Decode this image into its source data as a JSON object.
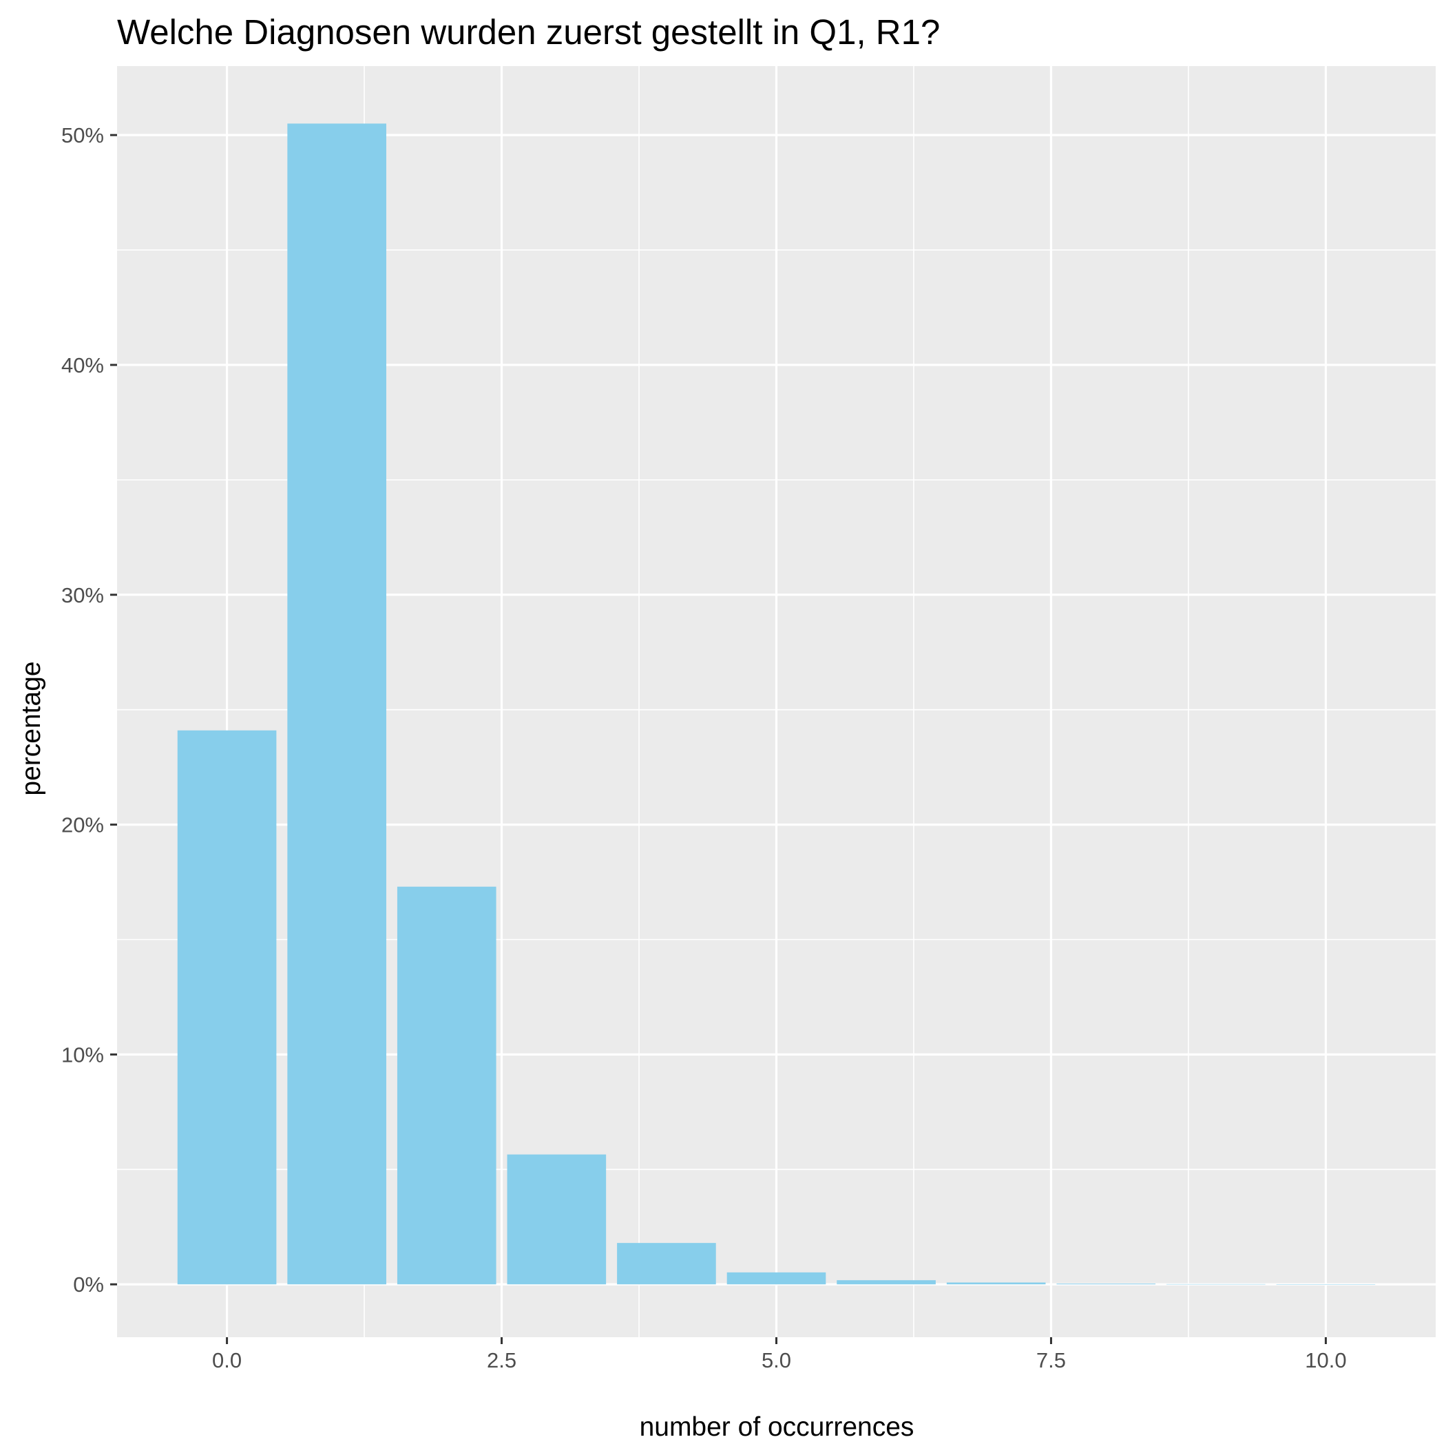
{
  "chart_data": {
    "type": "bar",
    "title": "Welche Diagnosen wurden zuerst gestellt in Q1, R1?",
    "xlabel": "number of occurrences",
    "ylabel": "percentage",
    "x": [
      0,
      1,
      2,
      3,
      4,
      5,
      6,
      7,
      8,
      9,
      10
    ],
    "values": [
      24.1,
      50.5,
      17.3,
      5.65,
      1.8,
      0.52,
      0.18,
      0.08,
      0.03,
      0.01,
      0.005
    ],
    "xlim": [
      -1,
      11
    ],
    "ylim": [
      -2.3,
      53
    ],
    "x_ticks": [
      0,
      2.5,
      5,
      7.5,
      10
    ],
    "x_tick_labels": [
      "0.0",
      "2.5",
      "5.0",
      "7.5",
      "10.0"
    ],
    "y_ticks": [
      0,
      10,
      20,
      30,
      40,
      50
    ],
    "y_tick_labels": [
      "0%",
      "10%",
      "20%",
      "30%",
      "40%",
      "50%"
    ],
    "grid": true,
    "colors": {
      "bar": "#87CEEB",
      "panel": "#EBEBEB",
      "grid": "#FFFFFF"
    }
  }
}
